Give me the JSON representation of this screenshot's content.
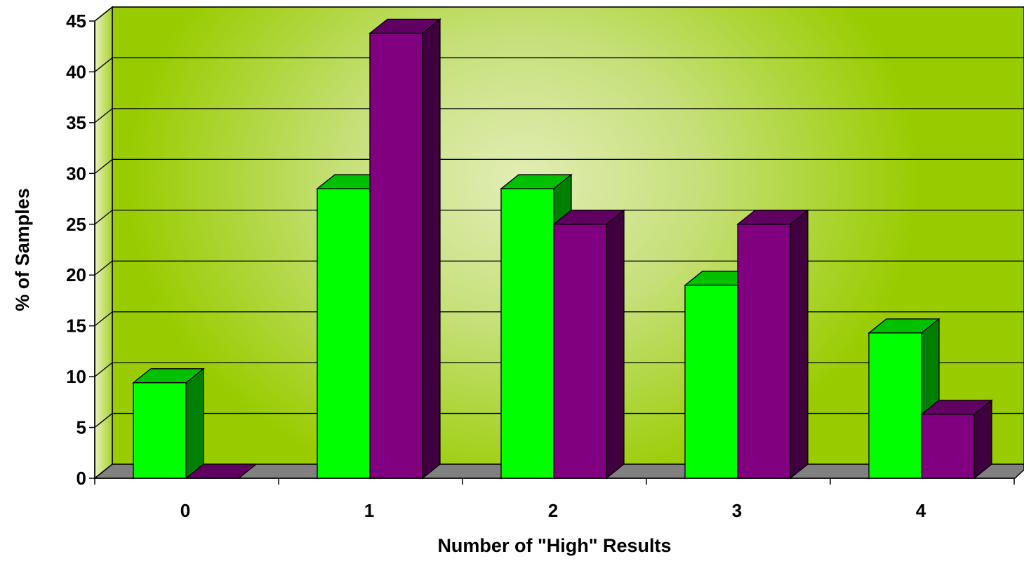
{
  "chart_data": {
    "type": "bar",
    "style": "3d-clustered-column",
    "title": "",
    "xlabel": "Number of \"High\" Results",
    "ylabel": "% of Samples",
    "categories": [
      "0",
      "1",
      "2",
      "3",
      "4"
    ],
    "ylim": [
      0,
      45
    ],
    "yticks": [
      "0",
      "5",
      "10",
      "15",
      "20",
      "25",
      "30",
      "35",
      "40",
      "45"
    ],
    "grid": true,
    "legend": "none",
    "series": [
      {
        "values": [
          9.4,
          28.5,
          28.5,
          19.0,
          14.3
        ],
        "color": "#00FF00",
        "side_color": "#008000"
      },
      {
        "values": [
          0,
          43.8,
          25.0,
          25.0,
          6.3
        ],
        "color": "#800080",
        "side_color": "#400040"
      }
    ],
    "background": {
      "edge_color": "#99CC00",
      "center_color": "#E2EDB5",
      "floor_color": "#808080"
    }
  }
}
